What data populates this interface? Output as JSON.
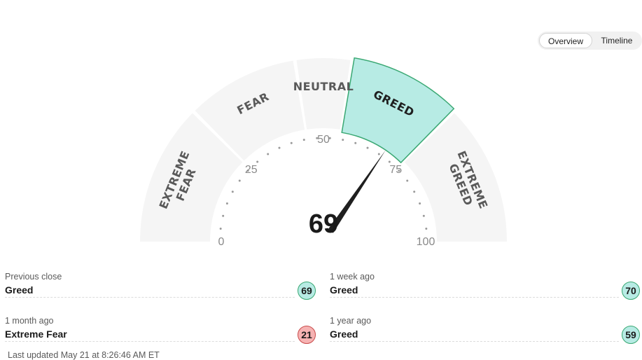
{
  "view_toggle": {
    "overview": "Overview",
    "timeline": "Timeline"
  },
  "gauge": {
    "value": 69,
    "value_text": "69",
    "active_zone": "greed",
    "zones": [
      {
        "key": "extreme-fear",
        "lines": [
          "EXTREME",
          "FEAR"
        ],
        "from": 0,
        "to": 25
      },
      {
        "key": "fear",
        "lines": [
          "FEAR"
        ],
        "from": 25,
        "to": 45
      },
      {
        "key": "neutral",
        "lines": [
          "NEUTRAL"
        ],
        "from": 45,
        "to": 55
      },
      {
        "key": "greed",
        "lines": [
          "GREED"
        ],
        "from": 55,
        "to": 75
      },
      {
        "key": "extreme-greed",
        "lines": [
          "EXTREME",
          "GREED"
        ],
        "from": 75,
        "to": 100
      }
    ],
    "scale_labels": [
      {
        "value": 0,
        "text": "0"
      },
      {
        "value": 25,
        "text": "25"
      },
      {
        "value": 50,
        "text": "50"
      },
      {
        "value": 75,
        "text": "75"
      },
      {
        "value": 100,
        "text": "100"
      }
    ],
    "colors": {
      "zone_fill": "#f5f5f5",
      "active_fill": "#b7ebe4",
      "active_stroke": "#3aa873",
      "needle": "#1f1f1f",
      "tick_dot": "#9a9a9a"
    }
  },
  "history": [
    {
      "label": "Previous close",
      "rating": "Greed",
      "value": "69",
      "tone": "greed"
    },
    {
      "label": "1 week ago",
      "rating": "Greed",
      "value": "70",
      "tone": "greed"
    },
    {
      "label": "1 month ago",
      "rating": "Extreme Fear",
      "value": "21",
      "tone": "fear"
    },
    {
      "label": "1 year ago",
      "rating": "Greed",
      "value": "59",
      "tone": "greed"
    }
  ],
  "badge_colors": {
    "greed": {
      "bg": "#b7ebe4",
      "border": "#3aa873"
    },
    "fear": {
      "bg": "#f6b3b3",
      "border": "#c94b4b"
    }
  },
  "last_updated": "Last updated May 21 at 8:26:46 AM ET"
}
